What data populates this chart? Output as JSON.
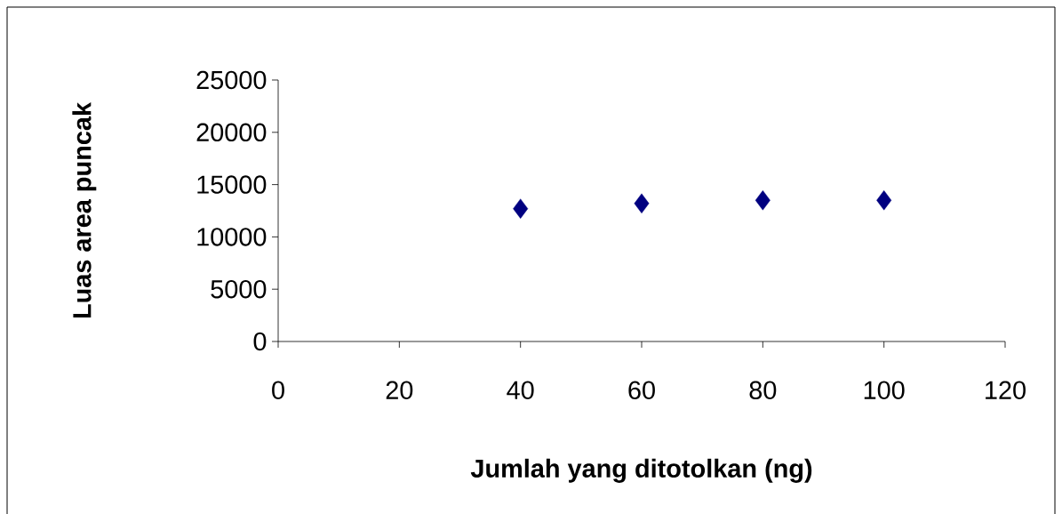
{
  "chart_data": {
    "type": "scatter",
    "xlabel": "Jumlah yang ditotolkan (ng)",
    "ylabel": "Luas area puncak",
    "x": [
      40,
      60,
      80,
      100
    ],
    "values": [
      12700,
      13200,
      13500,
      13500
    ],
    "color": "#000080",
    "marker": "diamond",
    "xlim": [
      0,
      120
    ],
    "xticks": [
      0,
      20,
      40,
      60,
      80,
      100,
      120
    ],
    "ylim": [
      0,
      25000
    ],
    "yticks": [
      0,
      5000,
      10000,
      15000,
      20000,
      25000
    ],
    "grid": false
  }
}
